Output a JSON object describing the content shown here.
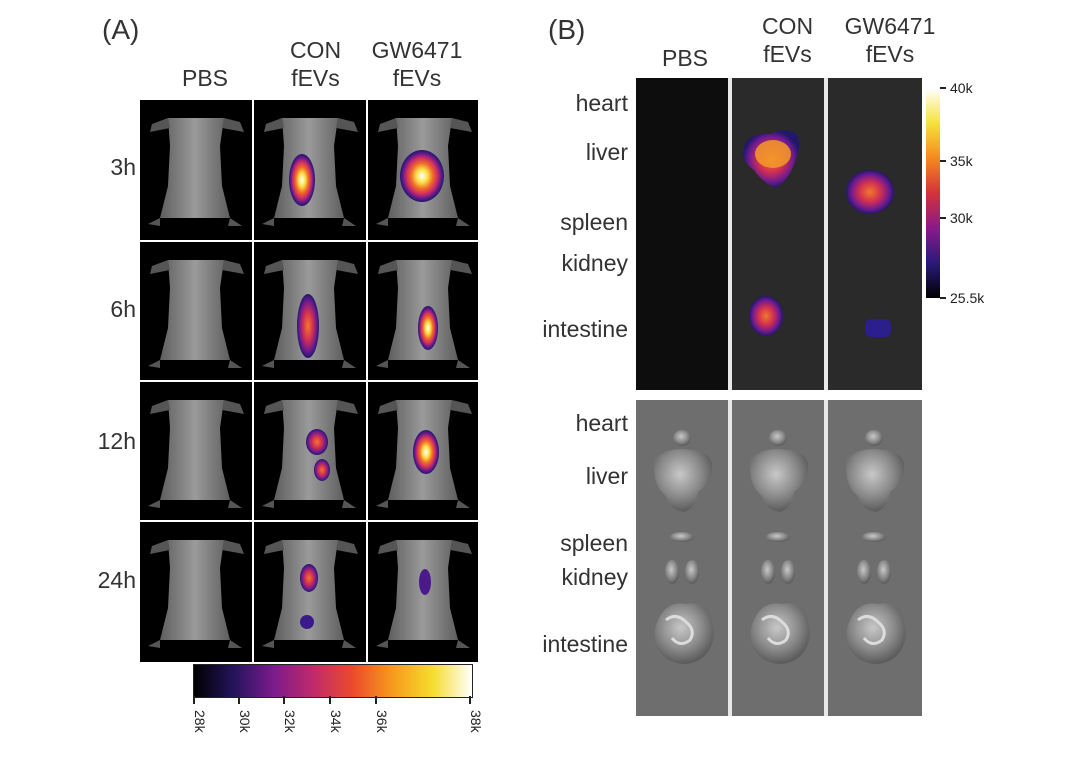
{
  "panel_a": {
    "letter": "(A)",
    "columns": [
      {
        "line1": "PBS",
        "line2": ""
      },
      {
        "line1": "CON",
        "line2": "fEVs"
      },
      {
        "line1": "GW6471",
        "line2": "fEVs"
      }
    ],
    "rows": [
      "3h",
      "6h",
      "12h",
      "24h"
    ],
    "colorbar": {
      "ticks": [
        "28k",
        "30k",
        "32k",
        "34k",
        "36k",
        "38k"
      ],
      "colors": [
        "#000000",
        "#23145c",
        "#7a1b8c",
        "#c02a6a",
        "#ec4a2c",
        "#f69a1c",
        "#f6dc2c",
        "#ffffff"
      ]
    }
  },
  "panel_b": {
    "letter": "(B)",
    "columns": [
      {
        "line1": "PBS",
        "line2": ""
      },
      {
        "line1": "CON",
        "line2": "fEVs"
      },
      {
        "line1": "GW6471",
        "line2": "fEVs"
      }
    ],
    "organs_fluor": [
      "heart",
      "liver",
      "spleen",
      "kidney",
      "intestine"
    ],
    "organs_photo": [
      "heart",
      "liver",
      "spleen",
      "kidney",
      "intestine"
    ],
    "colorbar": {
      "ticks": [
        "40k",
        "35k",
        "30k",
        "25.5k"
      ],
      "colors": [
        "#ffffff",
        "#f6e23c",
        "#f58a1e",
        "#d3323a",
        "#8a1a8a",
        "#2a1a7a",
        "#000000"
      ]
    }
  }
}
